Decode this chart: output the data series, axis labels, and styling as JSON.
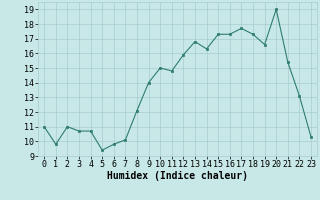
{
  "x": [
    0,
    1,
    2,
    3,
    4,
    5,
    6,
    7,
    8,
    9,
    10,
    11,
    12,
    13,
    14,
    15,
    16,
    17,
    18,
    19,
    20,
    21,
    22,
    23
  ],
  "y": [
    11.0,
    9.8,
    11.0,
    10.7,
    10.7,
    9.4,
    9.8,
    10.1,
    12.1,
    14.0,
    15.0,
    14.8,
    15.9,
    16.8,
    16.3,
    17.3,
    17.3,
    17.7,
    17.3,
    16.6,
    19.0,
    15.4,
    13.1,
    10.3
  ],
  "xlabel": "Humidex (Indice chaleur)",
  "ylim": [
    9,
    19.5
  ],
  "yticks": [
    9,
    10,
    11,
    12,
    13,
    14,
    15,
    16,
    17,
    18,
    19
  ],
  "xticks": [
    0,
    1,
    2,
    3,
    4,
    5,
    6,
    7,
    8,
    9,
    10,
    11,
    12,
    13,
    14,
    15,
    16,
    17,
    18,
    19,
    20,
    21,
    22,
    23
  ],
  "line_color": "#2e7d6e",
  "marker_color": "#2e7d6e",
  "bg_color": "#c8e8e8",
  "grid_color": "#a8cccc",
  "xlabel_fontsize": 7,
  "tick_fontsize": 6
}
